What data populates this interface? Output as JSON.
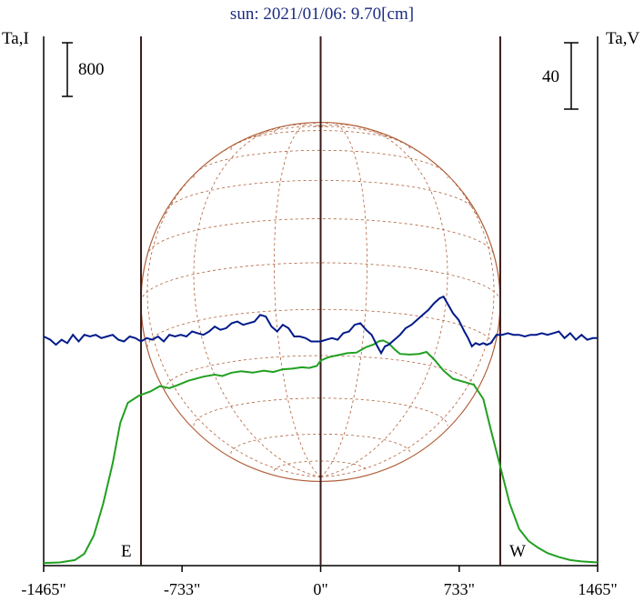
{
  "chart_data": {
    "type": "line",
    "title": "sun: 2021/01/06: 9.70[cm]",
    "left_axis_label": "Ta,I",
    "right_axis_label": "Ta,V",
    "left_scale_value": "800",
    "right_scale_value": "40",
    "east_label": "E",
    "west_label": "W",
    "x_ticks": [
      {
        "value": -1465,
        "label": "-1465\""
      },
      {
        "value": -733,
        "label": "-733\""
      },
      {
        "value": 0,
        "label": "0\""
      },
      {
        "value": 733,
        "label": "733\""
      },
      {
        "value": 1465,
        "label": "1465\""
      }
    ],
    "xlim": [
      -1465,
      1465
    ],
    "limb_arcsec": 950,
    "grid": true,
    "colors": {
      "title": "#1a2a80",
      "intensity": "#20a020",
      "polarization": "#001a8a",
      "disk": "#b0603a",
      "marker": "#3a1a1a"
    },
    "series": [
      {
        "name": "I",
        "units": "Ta,I",
        "points": [
          [
            -1465,
            12
          ],
          [
            -1380,
            20
          ],
          [
            -1300,
            55
          ],
          [
            -1250,
            150
          ],
          [
            -1200,
            420
          ],
          [
            -1150,
            900
          ],
          [
            -1100,
            1500
          ],
          [
            -1060,
            2100
          ],
          [
            -1020,
            2400
          ],
          [
            -960,
            2510
          ],
          [
            -900,
            2570
          ],
          [
            -850,
            2650
          ],
          [
            -800,
            2620
          ],
          [
            -760,
            2660
          ],
          [
            -700,
            2730
          ],
          [
            -620,
            2790
          ],
          [
            -560,
            2820
          ],
          [
            -520,
            2800
          ],
          [
            -470,
            2850
          ],
          [
            -420,
            2870
          ],
          [
            -360,
            2850
          ],
          [
            -300,
            2880
          ],
          [
            -250,
            2860
          ],
          [
            -200,
            2900
          ],
          [
            -150,
            2910
          ],
          [
            -100,
            2930
          ],
          [
            -60,
            2920
          ],
          [
            -20,
            2950
          ],
          [
            0,
            3030
          ],
          [
            40,
            3080
          ],
          [
            90,
            3110
          ],
          [
            140,
            3140
          ],
          [
            190,
            3150
          ],
          [
            240,
            3230
          ],
          [
            280,
            3270
          ],
          [
            310,
            3320
          ],
          [
            330,
            3330
          ],
          [
            360,
            3290
          ],
          [
            390,
            3200
          ],
          [
            420,
            3130
          ],
          [
            470,
            3120
          ],
          [
            520,
            3130
          ],
          [
            560,
            3160
          ],
          [
            600,
            3050
          ],
          [
            650,
            2880
          ],
          [
            700,
            2760
          ],
          [
            760,
            2710
          ],
          [
            810,
            2670
          ],
          [
            860,
            2460
          ],
          [
            900,
            2000
          ],
          [
            950,
            1450
          ],
          [
            1000,
            900
          ],
          [
            1050,
            520
          ],
          [
            1100,
            340
          ],
          [
            1150,
            240
          ],
          [
            1200,
            160
          ],
          [
            1260,
            100
          ],
          [
            1320,
            55
          ],
          [
            1380,
            35
          ],
          [
            1465,
            20
          ]
        ]
      },
      {
        "name": "V",
        "units": "Ta,V",
        "points": [
          [
            -1465,
            0
          ],
          [
            -1430,
            -2
          ],
          [
            -1400,
            -5
          ],
          [
            -1370,
            -2
          ],
          [
            -1340,
            -4
          ],
          [
            -1310,
            1
          ],
          [
            -1280,
            -3
          ],
          [
            -1250,
            1
          ],
          [
            -1220,
            0
          ],
          [
            -1190,
            1
          ],
          [
            -1160,
            -1
          ],
          [
            -1130,
            0
          ],
          [
            -1100,
            1
          ],
          [
            -1070,
            -2
          ],
          [
            -1040,
            -3
          ],
          [
            -1010,
            0
          ],
          [
            -980,
            -1
          ],
          [
            -950,
            -3
          ],
          [
            -920,
            -1
          ],
          [
            -890,
            -2
          ],
          [
            -860,
            0
          ],
          [
            -830,
            -3
          ],
          [
            -800,
            1
          ],
          [
            -770,
            0
          ],
          [
            -740,
            1
          ],
          [
            -710,
            0
          ],
          [
            -680,
            3
          ],
          [
            -650,
            2
          ],
          [
            -620,
            1
          ],
          [
            -590,
            3
          ],
          [
            -560,
            6
          ],
          [
            -530,
            4
          ],
          [
            -500,
            5
          ],
          [
            -470,
            8
          ],
          [
            -440,
            9
          ],
          [
            -410,
            7
          ],
          [
            -380,
            8
          ],
          [
            -350,
            9
          ],
          [
            -320,
            13
          ],
          [
            -290,
            12
          ],
          [
            -260,
            6
          ],
          [
            -230,
            3
          ],
          [
            -200,
            7
          ],
          [
            -170,
            5
          ],
          [
            -140,
            0
          ],
          [
            -110,
            0
          ],
          [
            -80,
            -1
          ],
          [
            -50,
            -3
          ],
          [
            -20,
            -3
          ],
          [
            0,
            -3
          ],
          [
            30,
            -2
          ],
          [
            60,
            -1
          ],
          [
            90,
            -2
          ],
          [
            120,
            2
          ],
          [
            150,
            3
          ],
          [
            180,
            7
          ],
          [
            210,
            8
          ],
          [
            240,
            4
          ],
          [
            270,
            1
          ],
          [
            300,
            -6
          ],
          [
            320,
            -10
          ],
          [
            340,
            -6
          ],
          [
            360,
            -5
          ],
          [
            390,
            -2
          ],
          [
            420,
            1
          ],
          [
            450,
            5
          ],
          [
            480,
            7
          ],
          [
            510,
            10
          ],
          [
            540,
            13
          ],
          [
            570,
            16
          ],
          [
            600,
            20
          ],
          [
            630,
            23
          ],
          [
            650,
            24
          ],
          [
            670,
            20
          ],
          [
            700,
            14
          ],
          [
            730,
            10
          ],
          [
            760,
            3
          ],
          [
            780,
            -1
          ],
          [
            800,
            -6
          ],
          [
            820,
            -4
          ],
          [
            840,
            -5
          ],
          [
            860,
            -4
          ],
          [
            880,
            -5
          ],
          [
            900,
            -4
          ],
          [
            930,
            1
          ],
          [
            960,
            1
          ],
          [
            990,
            2
          ],
          [
            1020,
            1
          ],
          [
            1050,
            1
          ],
          [
            1080,
            0
          ],
          [
            1110,
            1
          ],
          [
            1140,
            1
          ],
          [
            1170,
            2
          ],
          [
            1200,
            1
          ],
          [
            1230,
            2
          ],
          [
            1260,
            3
          ],
          [
            1290,
            -1
          ],
          [
            1320,
            2
          ],
          [
            1350,
            -2
          ],
          [
            1380,
            1
          ],
          [
            1410,
            -2
          ],
          [
            1440,
            -1
          ],
          [
            1465,
            -1
          ]
        ]
      }
    ]
  }
}
